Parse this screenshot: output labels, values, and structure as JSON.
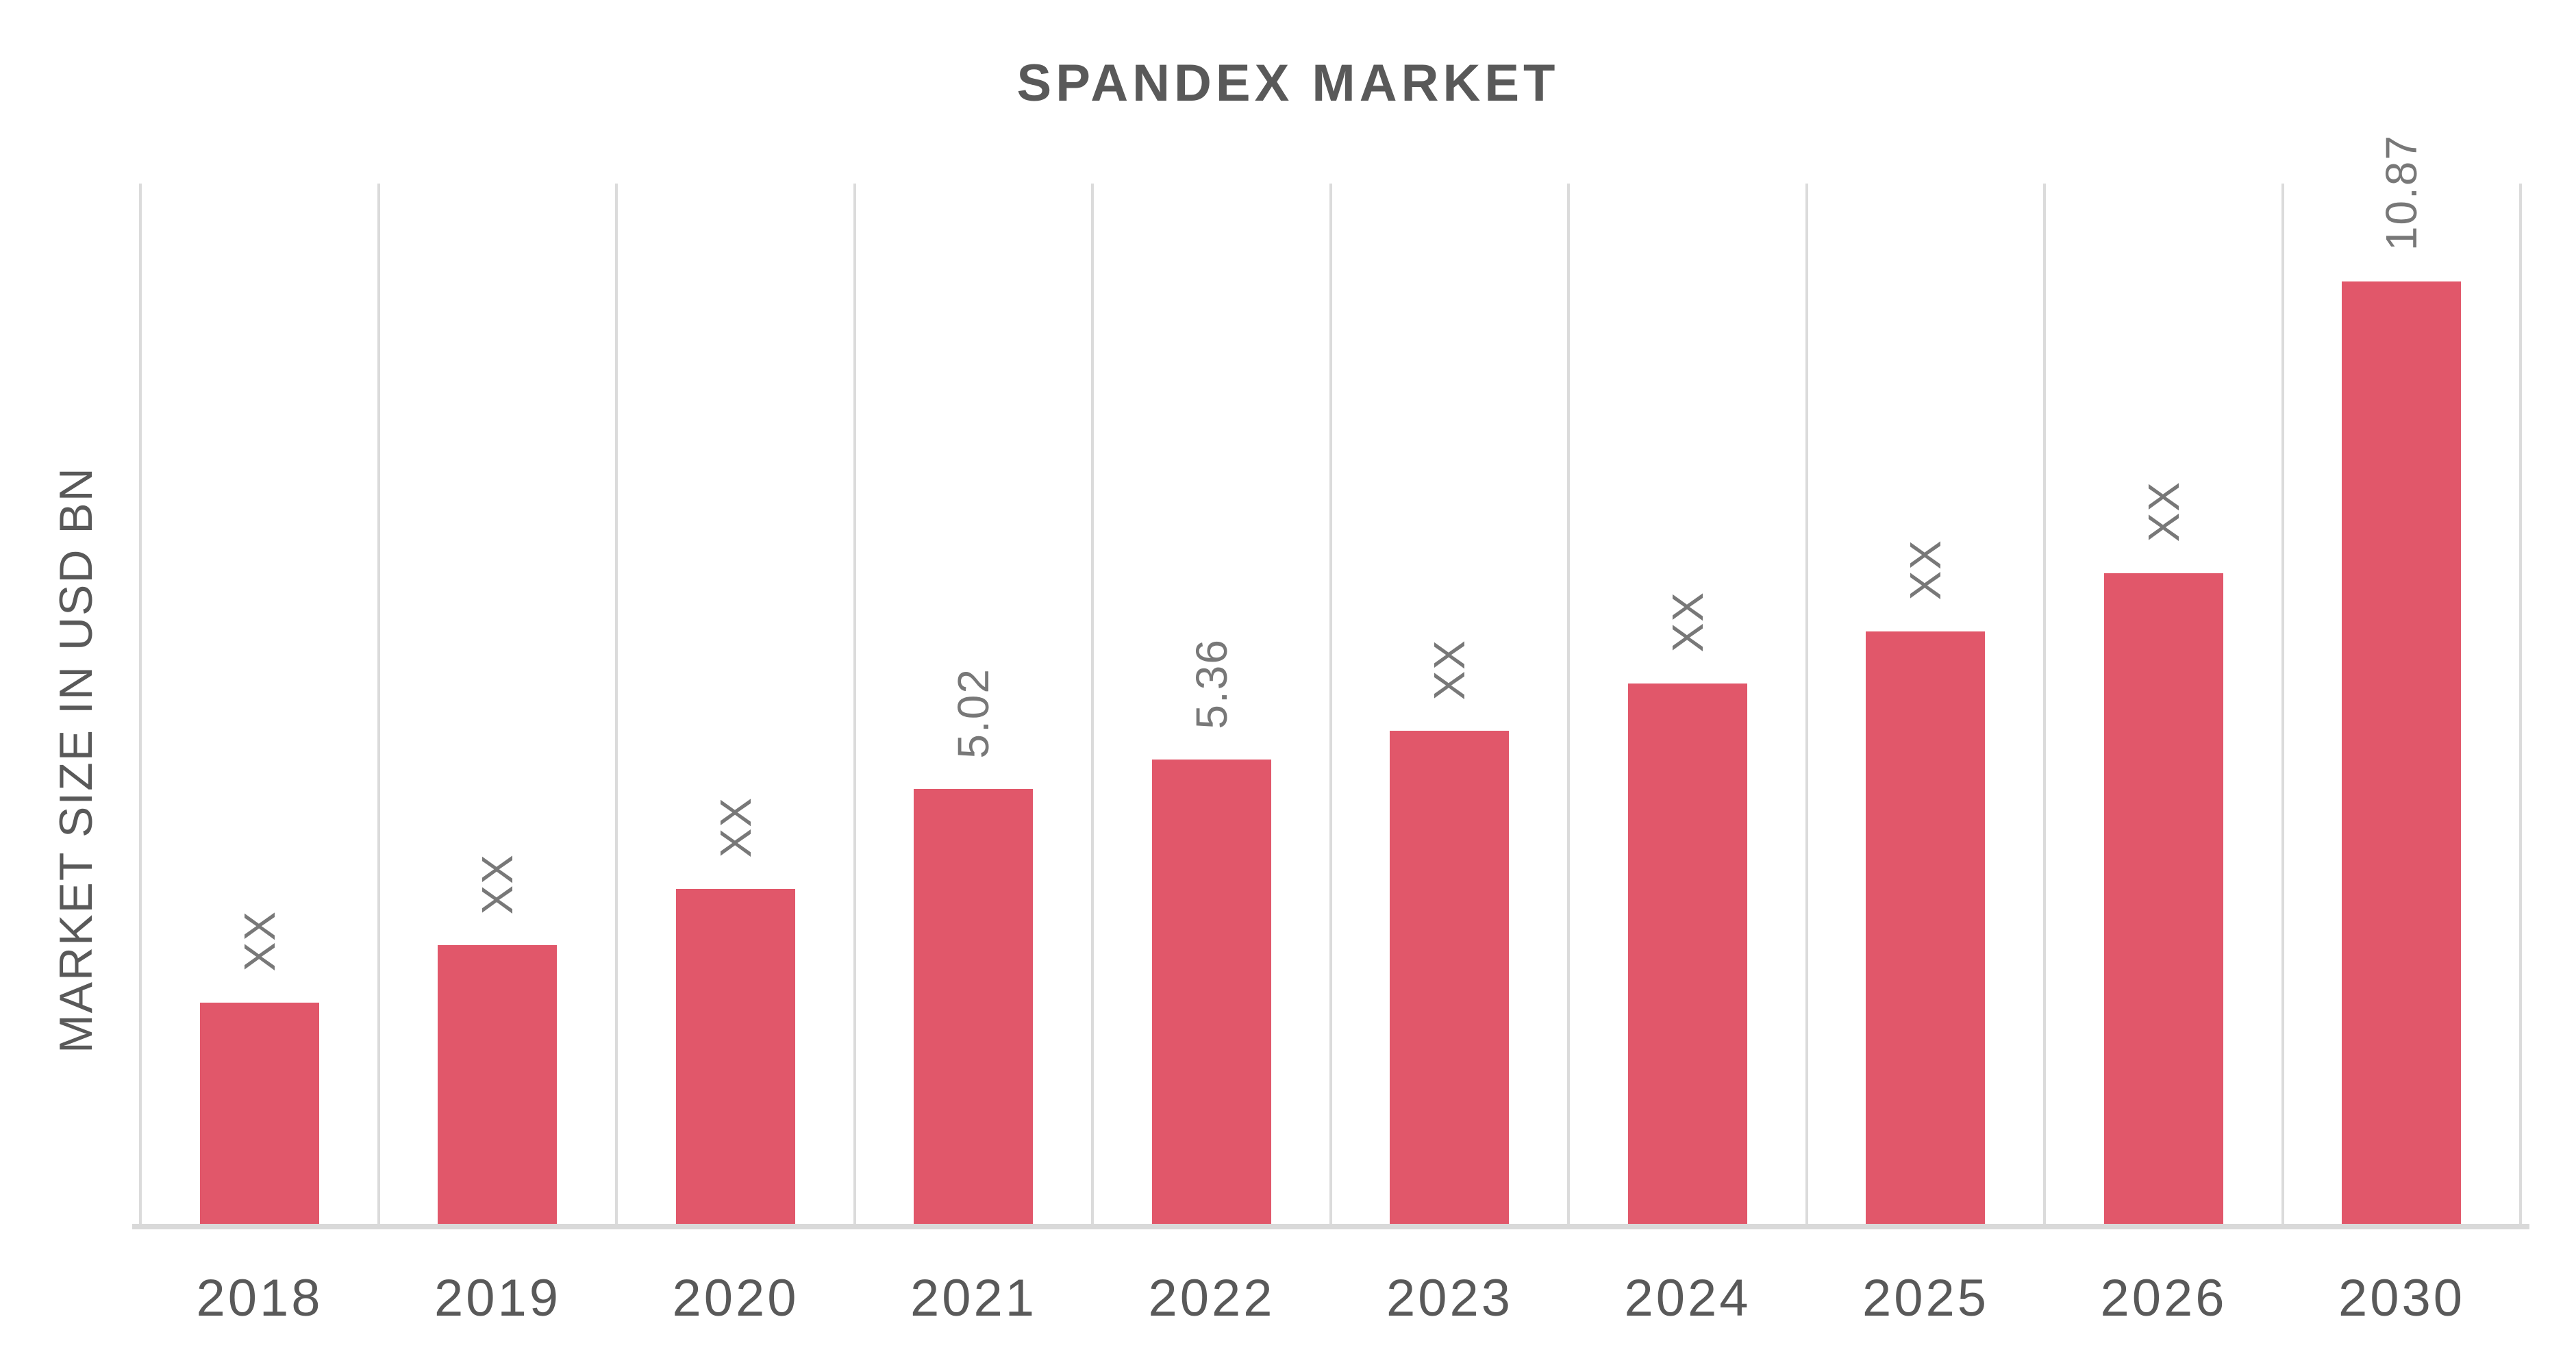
{
  "chart_data": {
    "type": "bar",
    "title": "SPANDEX MARKET",
    "xlabel": "",
    "ylabel": "MARKET SIZE IN USD BN",
    "categories": [
      "2018",
      "2019",
      "2020",
      "2021",
      "2022",
      "2023",
      "2024",
      "2025",
      "2026",
      "2030"
    ],
    "values": [
      2.56,
      3.22,
      3.87,
      5.02,
      5.36,
      5.69,
      6.24,
      6.84,
      7.51,
      10.87
    ],
    "bar_labels": [
      "XX",
      "XX",
      "XX",
      "5.02",
      "5.36",
      "XX",
      "XX",
      "XX",
      "XX",
      "10.87"
    ],
    "ylim": [
      0,
      12
    ],
    "grid": "vertical-column-separators-only",
    "legend": "none",
    "bar_color": "#e1576a",
    "gridline_color": "#dbdbdb",
    "axis_line_color": "#d9d9d9",
    "title_color": "#595959",
    "tick_label_color": "#595959",
    "value_label_color": "#787878"
  }
}
